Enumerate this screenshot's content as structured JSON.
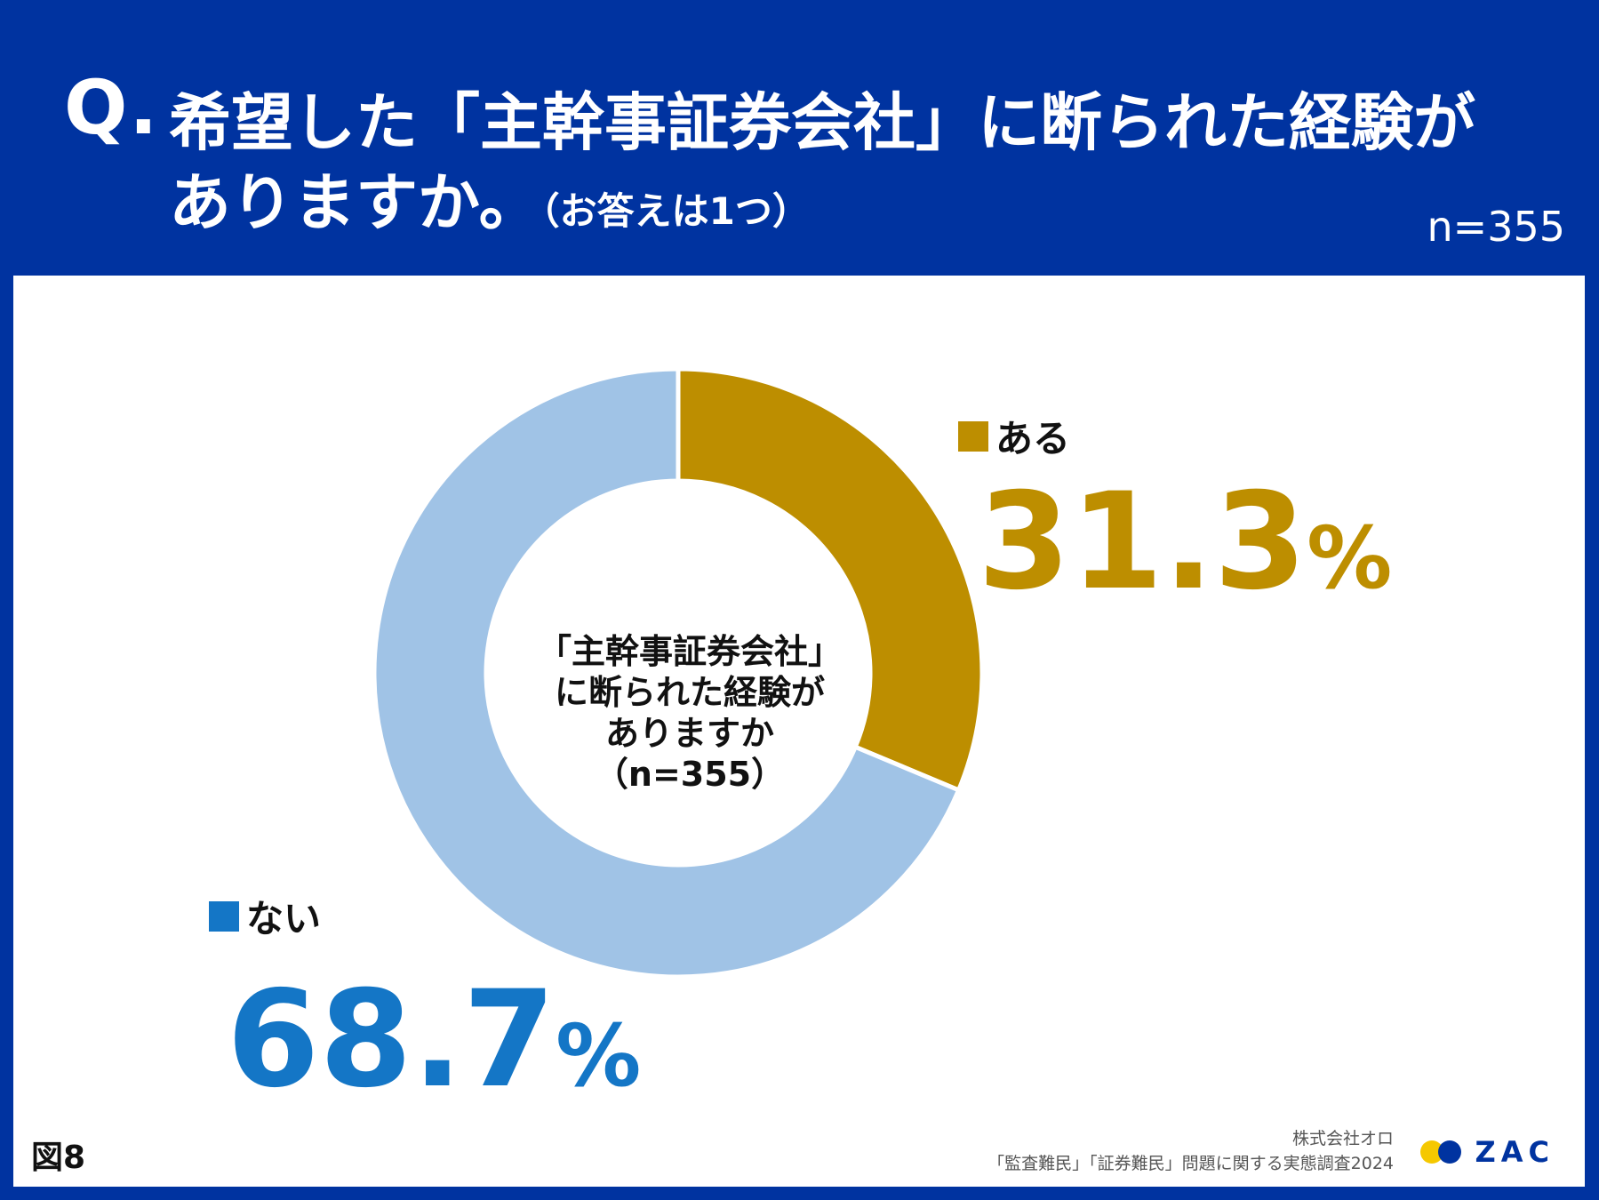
{
  "header": {
    "q_mark": "Q.",
    "question_line1": "希望した「主幹事証券会社」に断られた経験が",
    "question_line2": "ありますか。",
    "question_note": "（お答えは1つ）",
    "sample_size": "n=355"
  },
  "chart_data": {
    "type": "pie",
    "donut": true,
    "center_text": [
      "「主幹事証券会社」",
      "に断られた経験が",
      "ありますか",
      "（n=355）"
    ],
    "slices": [
      {
        "label": "ある",
        "value": 31.3,
        "display": "31.3",
        "unit": "%",
        "color": "#bd8e00"
      },
      {
        "label": "ない",
        "value": 68.7,
        "display": "68.7",
        "unit": "%",
        "color": "#a0c3e6"
      }
    ],
    "label_colors": {
      "ある": "#bd8e00",
      "ない": "#1476c6"
    }
  },
  "legend": {
    "aru": {
      "label": "ある",
      "color": "#bd8e00"
    },
    "nai": {
      "label": "ない",
      "color": "#1476c6"
    }
  },
  "footer": {
    "figure_label": "図8",
    "company": "株式会社オロ",
    "survey_title": "「監査難民」「証券難民」問題に関する実態調査2024",
    "logo_text": "ZAC",
    "logo_colors": [
      "#f5c800",
      "#0033a0"
    ]
  },
  "colors": {
    "header_bg": "#0033a0",
    "panel_bg": "#ffffff"
  }
}
